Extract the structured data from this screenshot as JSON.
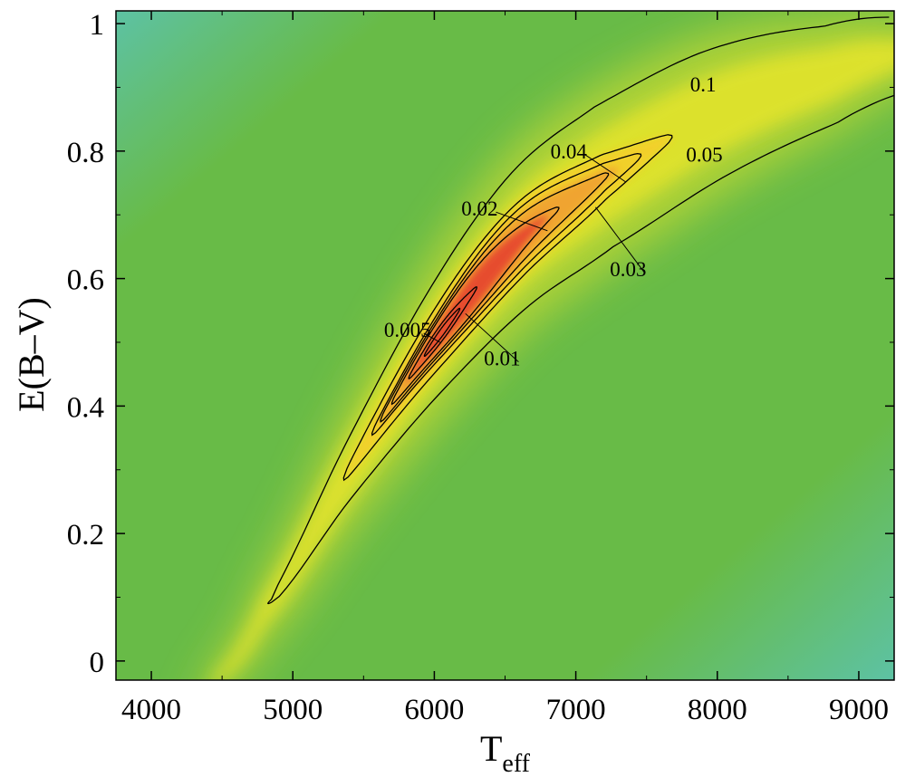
{
  "chart_data": {
    "type": "heatmap",
    "subtype": "density map with contour lines",
    "title": "",
    "xlabel": "T",
    "xlabel_subscript": "eff",
    "ylabel": "E(B–V)",
    "xlim": [
      3750,
      9250
    ],
    "ylim": [
      -0.03,
      1.02
    ],
    "xticks": [
      4000,
      5000,
      6000,
      7000,
      8000,
      9000
    ],
    "xtick_labels": [
      "4000",
      "5000",
      "6000",
      "7000",
      "8000",
      "9000"
    ],
    "yticks": [
      0,
      0.2,
      0.4,
      0.6,
      0.8,
      1
    ],
    "ytick_labels": [
      "0",
      "0.2",
      "0.4",
      "0.6",
      "0.8",
      "1"
    ],
    "grid": false,
    "colors": {
      "background": "#68bb47",
      "corner_teal": "#5dc2a4",
      "ridge_yellow": "#e8e52a",
      "peak_orange": "#f0a030",
      "peak_red": "#e53d2e",
      "contour": "#000000"
    },
    "ridge": {
      "description": "locus of maximum density, curved from bottom-left to top-right",
      "points": [
        {
          "x": 4450,
          "y": -0.03
        },
        {
          "x": 4800,
          "y": 0.08
        },
        {
          "x": 5400,
          "y": 0.3
        },
        {
          "x": 6000,
          "y": 0.5
        },
        {
          "x": 6600,
          "y": 0.66
        },
        {
          "x": 7200,
          "y": 0.76
        },
        {
          "x": 8000,
          "y": 0.86
        },
        {
          "x": 8800,
          "y": 0.92
        },
        {
          "x": 9250,
          "y": 0.95
        }
      ]
    },
    "contours": [
      {
        "level": "0.1",
        "start": 4850,
        "end": 9250,
        "width_start": 0.025,
        "width_mid": 0.11,
        "width_end": 0.06,
        "open_end": true
      },
      {
        "level": "0.05",
        "start": 5360,
        "end": 7680,
        "width_start": 0.02,
        "width_mid": 0.055,
        "width_end": 0.018,
        "open_end": false
      },
      {
        "level": "0.04",
        "start": 5560,
        "end": 7460,
        "width_start": 0.015,
        "width_mid": 0.045,
        "width_end": 0.015,
        "open_end": false
      },
      {
        "level": "0.03",
        "start": 5620,
        "end": 7230,
        "width_start": 0.013,
        "width_mid": 0.036,
        "width_end": 0.013,
        "open_end": false
      },
      {
        "level": "0.02",
        "start": 5700,
        "end": 6880,
        "width_start": 0.01,
        "width_mid": 0.028,
        "width_end": 0.01,
        "open_end": false
      },
      {
        "level": "0.01",
        "start": 5820,
        "end": 6300,
        "width_start": 0.006,
        "width_mid": 0.012,
        "width_end": 0.006,
        "open_end": false
      },
      {
        "level": "0.005",
        "start": 5930,
        "end": 6180,
        "width_start": 0.004,
        "width_mid": 0.006,
        "width_end": 0.004,
        "open_end": false
      }
    ],
    "contour_labels": [
      {
        "text": "0.1",
        "x": 7900,
        "y": 0.905
      },
      {
        "text": "0.05",
        "x": 7780,
        "y": 0.795,
        "anchor": "start"
      },
      {
        "text": "0.04",
        "x": 6950,
        "y": 0.8,
        "leader_to": {
          "x": 7350,
          "y": 0.752
        }
      },
      {
        "text": "0.02",
        "x": 6320,
        "y": 0.71,
        "leader_to": {
          "x": 6800,
          "y": 0.675
        }
      },
      {
        "text": "0.03",
        "x": 7370,
        "y": 0.615,
        "leader_to": {
          "x": 7140,
          "y": 0.712
        }
      },
      {
        "text": "0.005",
        "x": 5810,
        "y": 0.52,
        "leader_to": {
          "x": 6040,
          "y": 0.5
        }
      },
      {
        "text": "0.01",
        "x": 6480,
        "y": 0.475,
        "leader_to": {
          "x": 6220,
          "y": 0.545
        }
      }
    ]
  }
}
